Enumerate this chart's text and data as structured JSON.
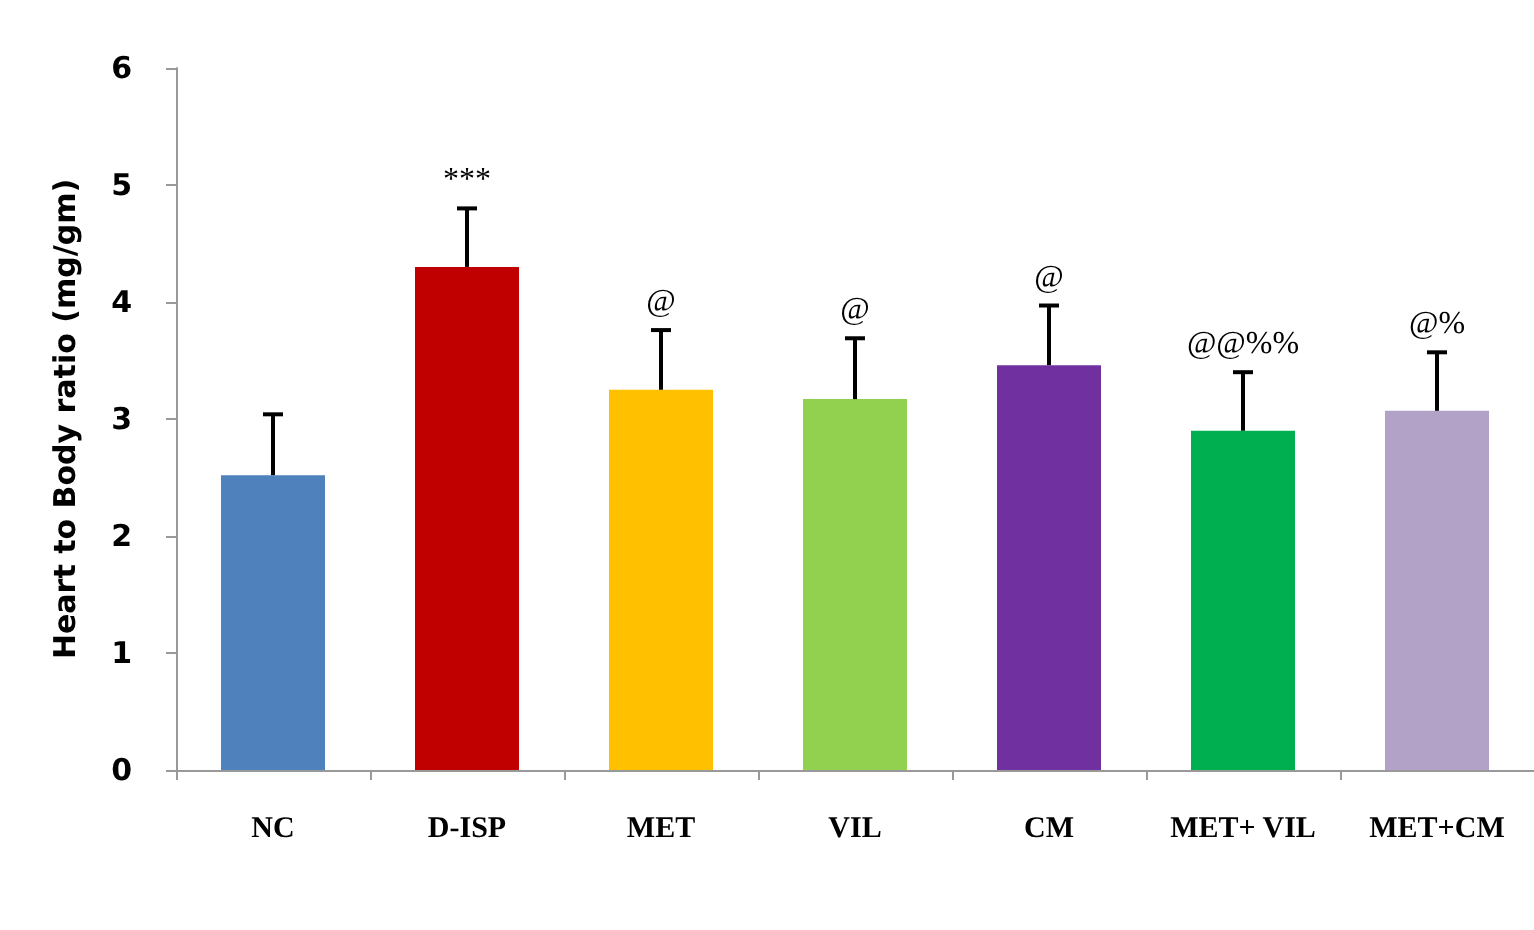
{
  "chart_data": {
    "type": "bar",
    "ylabel": "Heart to Body ratio (mg/gm)",
    "categories": [
      "NC",
      "D-ISP",
      "MET",
      "VIL",
      "CM",
      "MET+ VIL",
      "MET+CM"
    ],
    "values": [
      2.52,
      4.3,
      3.25,
      3.17,
      3.46,
      2.9,
      3.07
    ],
    "colors": [
      "#4f81bd",
      "#c00000",
      "#ffc000",
      "#92d050",
      "#7030a0",
      "#00b050",
      "#b2a2c7"
    ],
    "errors": [
      [
        2.52,
        3.04
      ],
      [
        4.3,
        4.8
      ],
      [
        3.25,
        3.76
      ],
      [
        3.17,
        3.69
      ],
      [
        3.46,
        3.97
      ],
      [
        2.9,
        3.4
      ],
      [
        3.07,
        3.57
      ]
    ],
    "ylim": [
      0,
      6
    ],
    "yticks": [
      0,
      1,
      2,
      3,
      4,
      5,
      6
    ],
    "grid": false,
    "annotations": [
      {
        "text": "***",
        "x": "D-ISP",
        "y": 4.8
      },
      {
        "text": "@",
        "x": "MET",
        "y": 3.76
      },
      {
        "text": "@",
        "x": "VIL",
        "y": 3.69
      },
      {
        "text": "@",
        "x": "CM",
        "y": 3.97
      },
      {
        "text": "@@%%",
        "x": "MET+ VIL",
        "y": 3.4
      },
      {
        "text": "@%",
        "x": "MET+CM",
        "y": 3.57
      }
    ]
  }
}
